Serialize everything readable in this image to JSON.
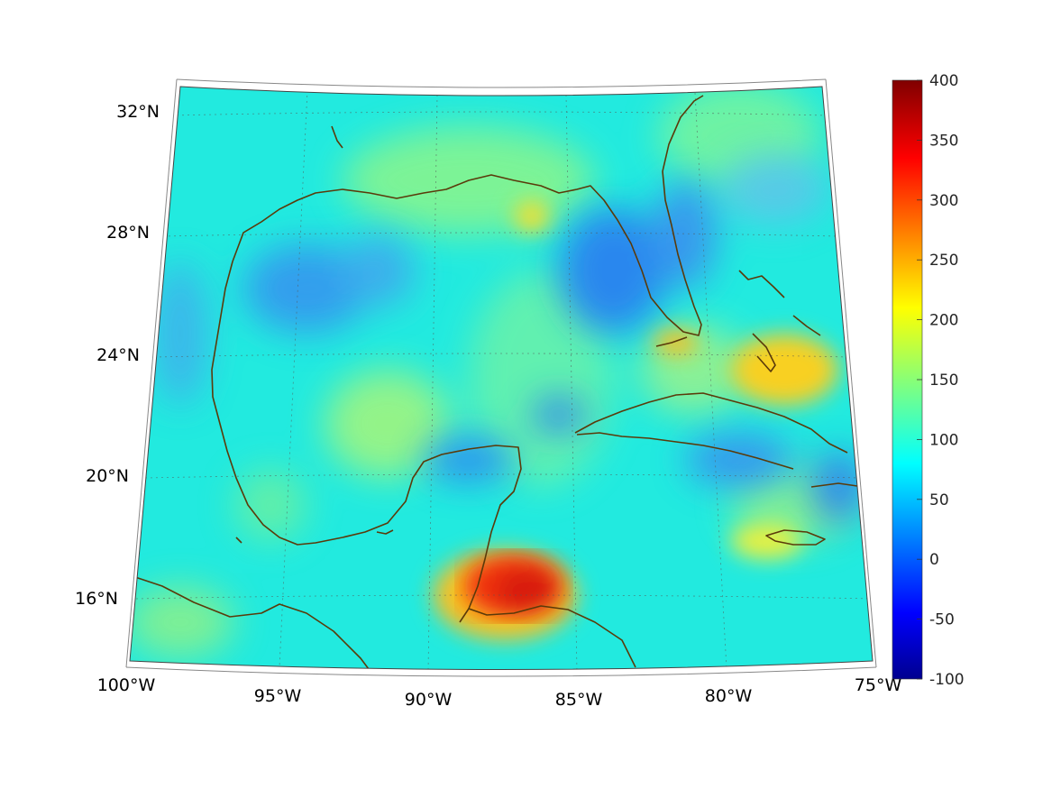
{
  "map": {
    "projection": "conic",
    "region": "Gulf of Mexico and Caribbean",
    "lon_labels": [
      "100°W",
      "95°W",
      "90°W",
      "85°W",
      "80°W",
      "75°W"
    ],
    "lat_labels": [
      "32°N",
      "28°N",
      "24°N",
      "20°N",
      "16°N"
    ],
    "coastline_color": "#5a3a0a",
    "grid": "dotted"
  },
  "colorbar": {
    "colormap": "jet",
    "min": -100,
    "max": 400,
    "ticks": [
      "400",
      "350",
      "300",
      "250",
      "200",
      "150",
      "100",
      "50",
      "0",
      "-50",
      "-100"
    ]
  },
  "field": {
    "background_level": 100,
    "features": [
      {
        "name": "Honduras / Belize hotspot",
        "level": 370
      },
      {
        "name": "Bahamas band",
        "level": 230
      },
      {
        "name": "Florida Keys",
        "level": 220
      },
      {
        "name": "Eastern Gulf low",
        "level": 40
      },
      {
        "name": "Western Gulf low",
        "level": 55
      },
      {
        "name": "Central Gulf band",
        "level": 150
      }
    ]
  }
}
